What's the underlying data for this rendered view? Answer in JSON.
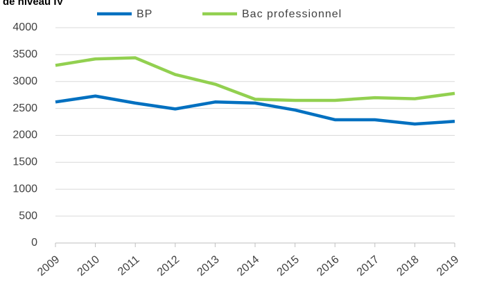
{
  "chart_data": {
    "type": "line",
    "title": "de niveau IV",
    "categories": [
      "2009",
      "2010",
      "2011",
      "2012",
      "2013",
      "2014",
      "2015",
      "2016",
      "2017",
      "2018",
      "2019"
    ],
    "series": [
      {
        "name": "BP",
        "color": "#0070c0",
        "values": [
          2620,
          2730,
          2600,
          2490,
          2620,
          2600,
          2470,
          2290,
          2290,
          2210,
          2260
        ]
      },
      {
        "name": "Bac professionnel",
        "color": "#92d050",
        "values": [
          3300,
          3420,
          3440,
          3130,
          2950,
          2670,
          2650,
          2650,
          2700,
          2680,
          2780
        ]
      }
    ],
    "ylim": [
      0,
      4000
    ],
    "yticks": [
      0,
      500,
      1000,
      1500,
      2000,
      2500,
      3000,
      3500,
      4000
    ],
    "grid": true,
    "legend": "top"
  }
}
